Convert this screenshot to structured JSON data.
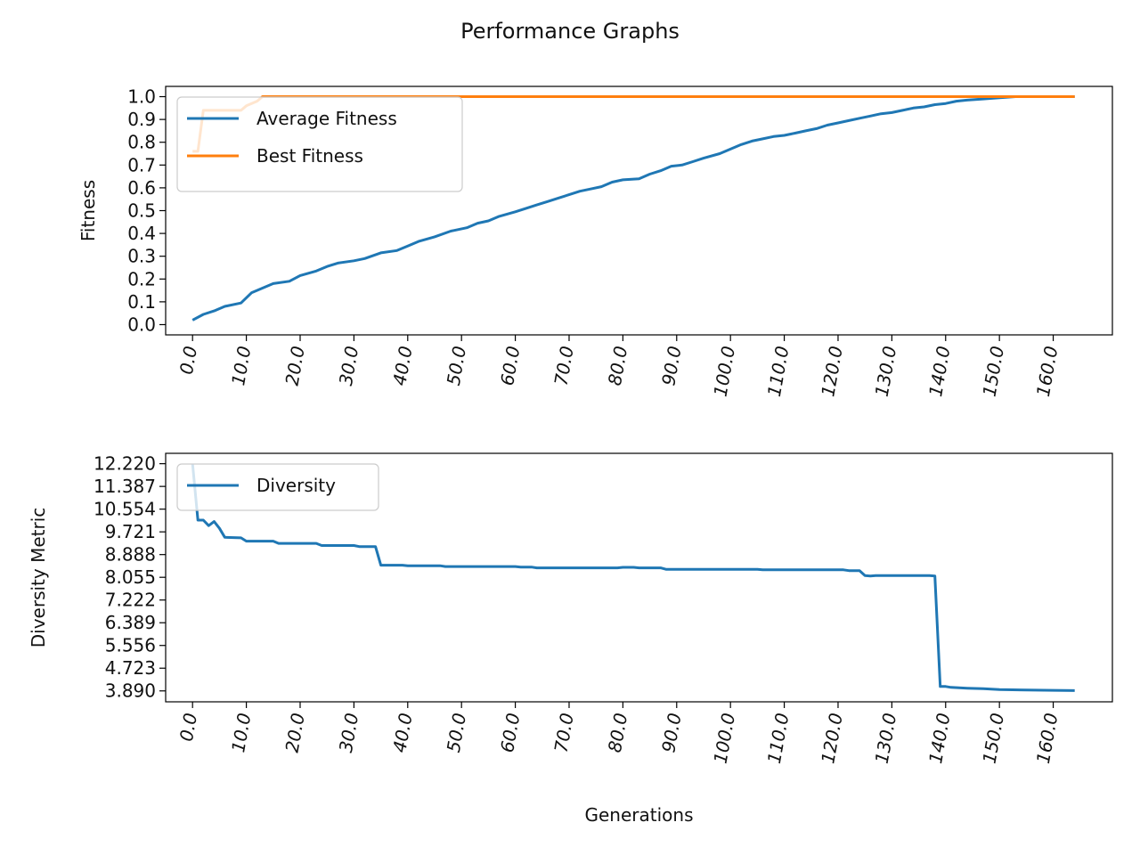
{
  "figure_title": "Performance Graphs",
  "colors": {
    "avg": "#1f77b4",
    "best": "#ff7f0e",
    "diversity": "#1f77b4"
  },
  "chart_data": [
    {
      "type": "line",
      "title": "",
      "xlabel": "",
      "ylabel": "Fitness",
      "xlim": [
        -5,
        171
      ],
      "ylim": [
        -0.045,
        1.045
      ],
      "grid": false,
      "legend_position": "upper-left",
      "x_ticks": [
        0,
        10,
        20,
        30,
        40,
        50,
        60,
        70,
        80,
        90,
        100,
        110,
        120,
        130,
        140,
        150,
        160
      ],
      "x_tick_labels": [
        "0.0",
        "10.0",
        "20.0",
        "30.0",
        "40.0",
        "50.0",
        "60.0",
        "70.0",
        "80.0",
        "90.0",
        "100.0",
        "110.0",
        "120.0",
        "130.0",
        "140.0",
        "150.0",
        "160.0"
      ],
      "y_ticks": [
        0.0,
        0.1,
        0.2,
        0.3,
        0.4,
        0.5,
        0.6,
        0.7,
        0.8,
        0.9,
        1.0
      ],
      "y_tick_labels": [
        "0.0",
        "0.1",
        "0.2",
        "0.3",
        "0.4",
        "0.5",
        "0.6",
        "0.7",
        "0.8",
        "0.9",
        "1.0"
      ],
      "series": [
        {
          "name": "Average Fitness",
          "color": "#1f77b4",
          "points": [
            [
              0,
              0.02
            ],
            [
              2,
              0.045
            ],
            [
              4,
              0.06
            ],
            [
              6,
              0.08
            ],
            [
              9,
              0.095
            ],
            [
              11,
              0.14
            ],
            [
              13,
              0.16
            ],
            [
              15,
              0.18
            ],
            [
              18,
              0.19
            ],
            [
              20,
              0.215
            ],
            [
              23,
              0.235
            ],
            [
              25,
              0.255
            ],
            [
              27,
              0.27
            ],
            [
              30,
              0.28
            ],
            [
              32,
              0.29
            ],
            [
              35,
              0.315
            ],
            [
              38,
              0.325
            ],
            [
              40,
              0.345
            ],
            [
              42,
              0.365
            ],
            [
              45,
              0.385
            ],
            [
              48,
              0.41
            ],
            [
              51,
              0.425
            ],
            [
              53,
              0.445
            ],
            [
              55,
              0.455
            ],
            [
              57,
              0.475
            ],
            [
              60,
              0.495
            ],
            [
              62,
              0.51
            ],
            [
              64,
              0.525
            ],
            [
              66,
              0.54
            ],
            [
              68,
              0.555
            ],
            [
              70,
              0.57
            ],
            [
              72,
              0.585
            ],
            [
              74,
              0.595
            ],
            [
              76,
              0.605
            ],
            [
              78,
              0.625
            ],
            [
              80,
              0.635
            ],
            [
              83,
              0.64
            ],
            [
              85,
              0.66
            ],
            [
              87,
              0.675
            ],
            [
              89,
              0.695
            ],
            [
              91,
              0.7
            ],
            [
              93,
              0.715
            ],
            [
              95,
              0.73
            ],
            [
              98,
              0.75
            ],
            [
              100,
              0.77
            ],
            [
              102,
              0.79
            ],
            [
              104,
              0.805
            ],
            [
              106,
              0.815
            ],
            [
              108,
              0.825
            ],
            [
              110,
              0.83
            ],
            [
              112,
              0.84
            ],
            [
              114,
              0.85
            ],
            [
              116,
              0.86
            ],
            [
              118,
              0.875
            ],
            [
              120,
              0.885
            ],
            [
              122,
              0.895
            ],
            [
              124,
              0.905
            ],
            [
              126,
              0.915
            ],
            [
              128,
              0.925
            ],
            [
              130,
              0.93
            ],
            [
              132,
              0.94
            ],
            [
              134,
              0.95
            ],
            [
              136,
              0.955
            ],
            [
              138,
              0.965
            ],
            [
              140,
              0.97
            ],
            [
              142,
              0.98
            ],
            [
              144,
              0.985
            ],
            [
              147,
              0.99
            ],
            [
              150,
              0.995
            ],
            [
              153,
              1.0
            ],
            [
              164,
              1.0
            ]
          ]
        },
        {
          "name": "Best Fitness",
          "color": "#ff7f0e",
          "points": [
            [
              0,
              0.76
            ],
            [
              1,
              0.76
            ],
            [
              2,
              0.94
            ],
            [
              4,
              0.94
            ],
            [
              6,
              0.94
            ],
            [
              9,
              0.94
            ],
            [
              10,
              0.96
            ],
            [
              12,
              0.98
            ],
            [
              13,
              1.0
            ],
            [
              20,
              1.0
            ],
            [
              30,
              1.0
            ],
            [
              40,
              1.0
            ],
            [
              60,
              1.0
            ],
            [
              80,
              1.0
            ],
            [
              100,
              1.0
            ],
            [
              120,
              1.0
            ],
            [
              140,
              1.0
            ],
            [
              164,
              1.0
            ]
          ]
        }
      ]
    },
    {
      "type": "line",
      "title": "",
      "xlabel": "Generations",
      "ylabel": "Diversity Metric",
      "xlim": [
        -5,
        171
      ],
      "ylim": [
        3.49,
        12.6
      ],
      "grid": false,
      "legend_position": "upper-left",
      "x_ticks": [
        0,
        10,
        20,
        30,
        40,
        50,
        60,
        70,
        80,
        90,
        100,
        110,
        120,
        130,
        140,
        150,
        160
      ],
      "x_tick_labels": [
        "0.0",
        "10.0",
        "20.0",
        "30.0",
        "40.0",
        "50.0",
        "60.0",
        "70.0",
        "80.0",
        "90.0",
        "100.0",
        "110.0",
        "120.0",
        "130.0",
        "140.0",
        "150.0",
        "160.0"
      ],
      "y_ticks": [
        3.89,
        4.723,
        5.556,
        6.389,
        7.222,
        8.055,
        8.888,
        9.721,
        10.554,
        11.387,
        12.22
      ],
      "y_tick_labels": [
        "3.890",
        "4.723",
        "5.556",
        "6.389",
        "7.222",
        "8.055",
        "8.888",
        "9.721",
        "10.554",
        "11.387",
        "12.220"
      ],
      "series": [
        {
          "name": "Diversity",
          "color": "#1f77b4",
          "points": [
            [
              0,
              12.22
            ],
            [
              1,
              10.15
            ],
            [
              2,
              10.15
            ],
            [
              3,
              9.95
            ],
            [
              4,
              10.1
            ],
            [
              5,
              9.85
            ],
            [
              6,
              9.52
            ],
            [
              9,
              9.5
            ],
            [
              10,
              9.38
            ],
            [
              15,
              9.38
            ],
            [
              16,
              9.3
            ],
            [
              23,
              9.3
            ],
            [
              24,
              9.22
            ],
            [
              30,
              9.22
            ],
            [
              31,
              9.18
            ],
            [
              34,
              9.18
            ],
            [
              35,
              8.5
            ],
            [
              39,
              8.5
            ],
            [
              40,
              8.48
            ],
            [
              46,
              8.48
            ],
            [
              47,
              8.45
            ],
            [
              60,
              8.45
            ],
            [
              61,
              8.43
            ],
            [
              63,
              8.43
            ],
            [
              64,
              8.4
            ],
            [
              79,
              8.4
            ],
            [
              80,
              8.42
            ],
            [
              82,
              8.42
            ],
            [
              83,
              8.4
            ],
            [
              87,
              8.4
            ],
            [
              88,
              8.35
            ],
            [
              105,
              8.35
            ],
            [
              106,
              8.33
            ],
            [
              121,
              8.33
            ],
            [
              122,
              8.3
            ],
            [
              123,
              8.3
            ],
            [
              124,
              8.3
            ],
            [
              125,
              8.12
            ],
            [
              126,
              8.1
            ],
            [
              127,
              8.12
            ],
            [
              133,
              8.12
            ],
            [
              137,
              8.12
            ],
            [
              138,
              8.1
            ],
            [
              139,
              4.05
            ],
            [
              140,
              4.05
            ],
            [
              141,
              4.02
            ],
            [
              144,
              3.99
            ],
            [
              147,
              3.97
            ],
            [
              150,
              3.94
            ],
            [
              155,
              3.92
            ],
            [
              160,
              3.91
            ],
            [
              164,
              3.9
            ]
          ]
        }
      ]
    }
  ]
}
